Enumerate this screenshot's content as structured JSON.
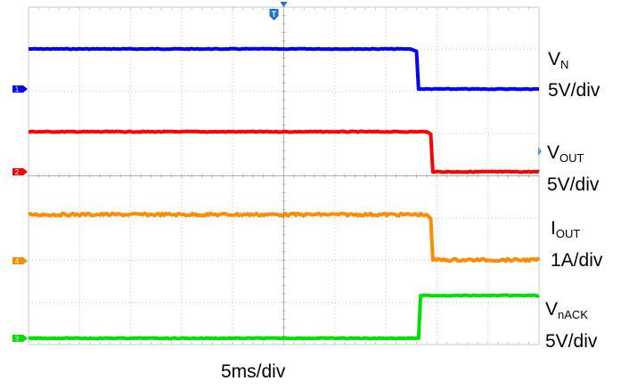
{
  "chart_data": {
    "type": "line",
    "title": "",
    "x_units": "ms",
    "x_scale": "5ms/div",
    "x_range": [
      -20,
      5
    ],
    "trigger_marker": "T",
    "series": [
      {
        "name": "V",
        "name_sub": "N",
        "channel": "1",
        "scale": "5V/div",
        "color": "#0000ff",
        "noise": 0.4,
        "points": [
          [
            -20,
            5.0
          ],
          [
            -1.3,
            5.0
          ],
          [
            -1.0,
            4.7
          ],
          [
            -0.9,
            0.0
          ],
          [
            5,
            0.0
          ]
        ]
      },
      {
        "name": "V",
        "name_sub": "OUT",
        "channel": "2",
        "scale": "5V/div",
        "color": "#ff0000",
        "noise": 0.5,
        "points": [
          [
            -20,
            5.0
          ],
          [
            -0.5,
            5.0
          ],
          [
            -0.3,
            4.7
          ],
          [
            -0.2,
            0.0
          ],
          [
            5,
            0.0
          ]
        ]
      },
      {
        "name": "I",
        "name_sub": "OUT",
        "channel": "4",
        "scale": "1A/div",
        "color": "#ff8c00",
        "noise": 1.4,
        "points": [
          [
            -20,
            0.55
          ],
          [
            -0.5,
            0.55
          ],
          [
            -0.3,
            0.5
          ],
          [
            -0.2,
            0.01
          ],
          [
            5,
            0.01
          ]
        ]
      },
      {
        "name": "V",
        "name_sub": "nACK",
        "channel": "3",
        "scale": "5V/div",
        "color": "#00e000",
        "noise": 0.5,
        "points": [
          [
            -20,
            0.0
          ],
          [
            -0.9,
            0.0
          ],
          [
            -0.8,
            5.0
          ],
          [
            5,
            5.0
          ]
        ]
      }
    ]
  },
  "timebase_label": "5ms/div"
}
